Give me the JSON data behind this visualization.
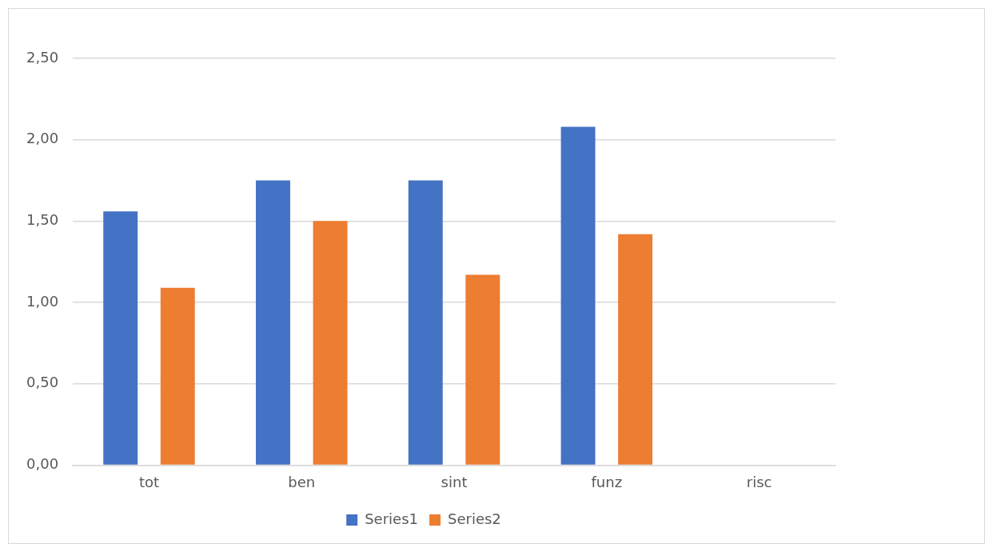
{
  "chart_data": {
    "type": "bar",
    "categories": [
      "tot",
      "ben",
      "sint",
      "funz",
      "risc"
    ],
    "series": [
      {
        "name": "Series1",
        "color": "#4472c4",
        "values": [
          1.56,
          1.75,
          1.75,
          2.08,
          null
        ]
      },
      {
        "name": "Series2",
        "color": "#ed7d31",
        "values": [
          1.09,
          1.5,
          1.17,
          1.42,
          null
        ]
      }
    ],
    "ylim": [
      0,
      2.5
    ],
    "yticks": [
      {
        "value": 0,
        "label": "0,00"
      },
      {
        "value": 0.5,
        "label": "0,50"
      },
      {
        "value": 1,
        "label": "1,00"
      },
      {
        "value": 1.5,
        "label": "1,50"
      },
      {
        "value": 2,
        "label": "2,00"
      },
      {
        "value": 2.5,
        "label": "2,50"
      }
    ],
    "grid": "y",
    "legend": "bottom"
  }
}
